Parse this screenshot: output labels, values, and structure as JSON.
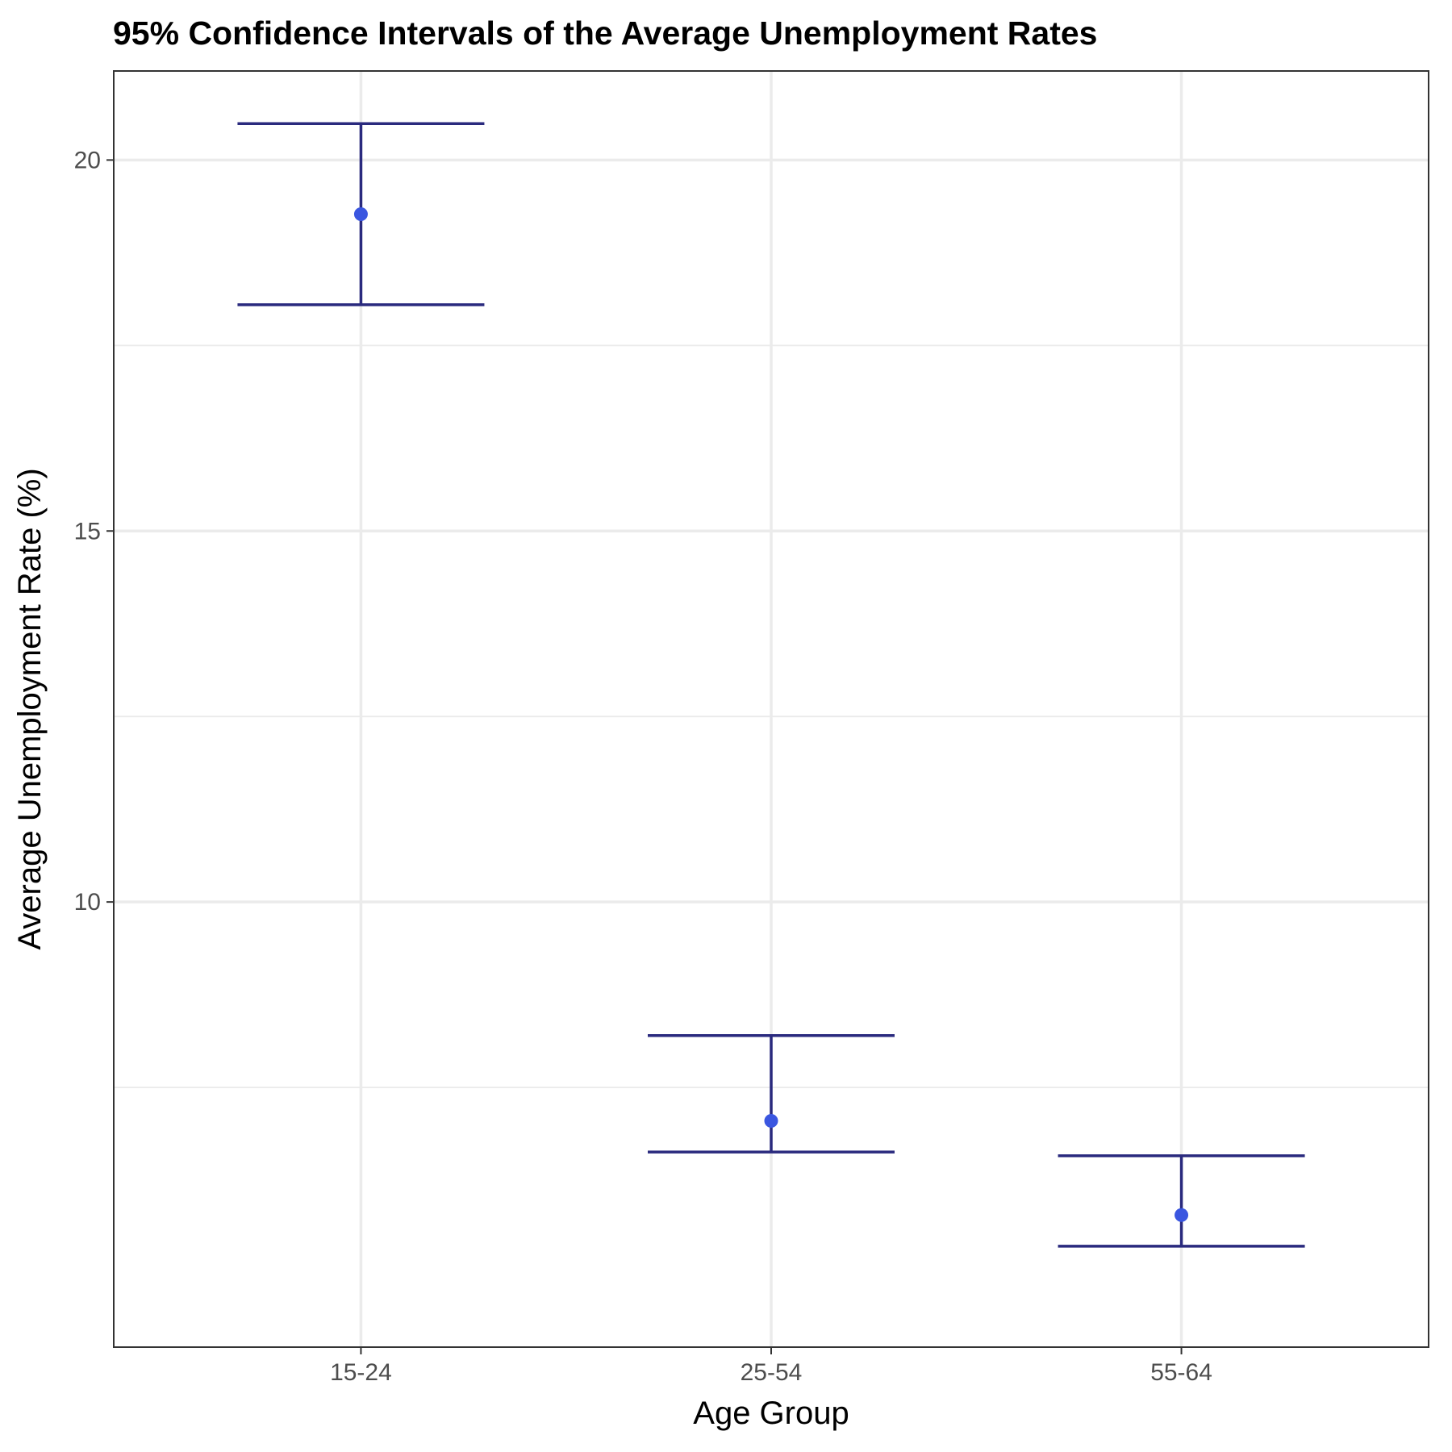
{
  "chart_data": {
    "type": "errorbar",
    "title": "95% Confidence Intervals of the Average Unemployment Rates",
    "xlabel": "Age Group",
    "ylabel": "Average Unemployment Rate (%)",
    "categories": [
      "15-24",
      "25-54",
      "55-64"
    ],
    "means": [
      19.27,
      7.05,
      5.78
    ],
    "lower": [
      18.05,
      6.63,
      5.36
    ],
    "upper": [
      20.49,
      8.2,
      6.58
    ],
    "ylim": [
      4.0,
      21.2
    ],
    "yticks": [
      10,
      15,
      20
    ],
    "ytick_labels": [
      "10",
      "15",
      "20"
    ],
    "grid": true,
    "colors": {
      "errorbar": "#2a2a7e",
      "point": "#3a56e0",
      "grid": "#ebebeb"
    }
  }
}
